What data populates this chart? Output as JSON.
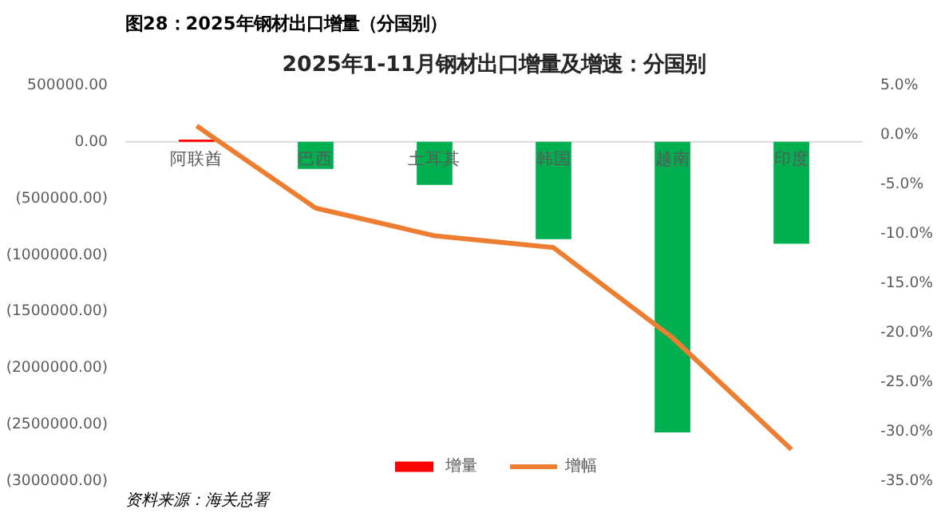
{
  "chart_data": {
    "type": "bar",
    "title": "2025年1-11月钢材出口增量及增速：分国别",
    "annotations": [
      "图28：2025年钢材出口增量（分国别）",
      "资料来源：海关总署"
    ],
    "categories": [
      "阿联酋",
      "巴西",
      "土耳其",
      "韩国",
      "越南",
      "印度"
    ],
    "series": [
      {
        "name": "增量",
        "color": "#ff0000",
        "colors": [
          "#ff0000",
          "#00b050",
          "#00b050",
          "#00b050",
          "#00b050",
          "#00b050"
        ],
        "values": [
          20000,
          -240000,
          -380000,
          -860000,
          -2570000,
          -900000
        ]
      },
      {
        "name": "增幅",
        "type": "line",
        "color": "#ed7d31",
        "axis": "y2",
        "values": [
          0.9,
          -7.4,
          -10.2,
          -11.4,
          -20.5,
          -31.8
        ]
      }
    ],
    "ylim": [
      -3000000,
      500000
    ],
    "yticks": [
      {
        "value": 500000,
        "label": "500000.00"
      },
      {
        "value": 0,
        "label": "0.00"
      },
      {
        "value": -500000,
        "label": "(500000.00)"
      },
      {
        "value": -1000000,
        "label": "(1000000.00)"
      },
      {
        "value": -1500000,
        "label": "(1500000.00)"
      },
      {
        "value": -2000000,
        "label": "(2000000.00)"
      },
      {
        "value": -2500000,
        "label": "(2500000.00)"
      },
      {
        "value": -3000000,
        "label": "(3000000.00)"
      }
    ],
    "y2lim": [
      -35,
      5
    ],
    "y2ticks": [
      {
        "value": 5,
        "label": "5.0%"
      },
      {
        "value": 0,
        "label": "0.0%"
      },
      {
        "value": -5,
        "label": "-5.0%"
      },
      {
        "value": -10,
        "label": "-10.0%"
      },
      {
        "value": -15,
        "label": "-15.0%"
      },
      {
        "value": -20,
        "label": "-20.0%"
      },
      {
        "value": -25,
        "label": "-25.0%"
      },
      {
        "value": -30,
        "label": "-30.0%"
      },
      {
        "value": -35,
        "label": "-35.0%"
      }
    ],
    "grid": false,
    "legend": "bottom"
  }
}
